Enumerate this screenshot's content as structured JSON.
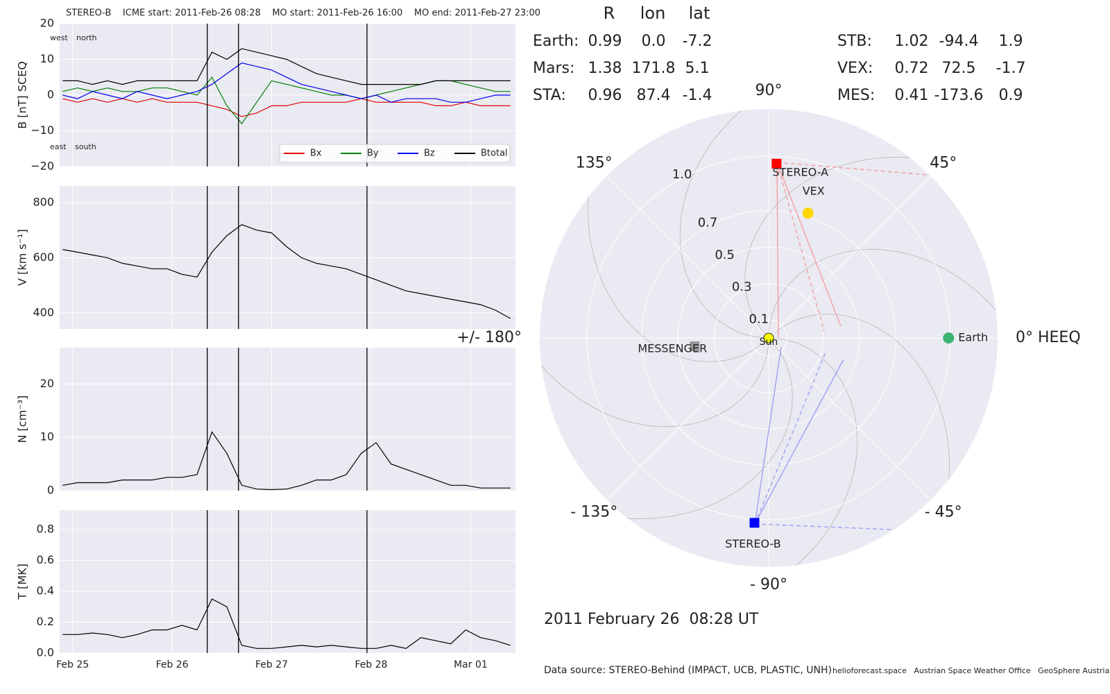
{
  "chart_data": [
    {
      "type": "timeseries",
      "title": "STEREO-B    ICME start: 2011-Feb-26 08:28    MO start: 2011-Feb-26 16:00    MO end: 2011-Feb-27 23:00",
      "x": [
        24.9,
        25.05,
        25.2,
        25.35,
        25.5,
        25.65,
        25.8,
        25.95,
        26.1,
        26.25,
        26.4,
        26.55,
        26.7,
        26.85,
        27.0,
        27.15,
        27.3,
        27.45,
        27.6,
        27.75,
        27.9,
        28.05,
        28.2,
        28.35,
        28.5,
        28.65,
        28.8,
        28.95,
        29.1,
        29.25,
        29.4
      ],
      "xlim": [
        24.87,
        29.45
      ],
      "xticks": [
        {
          "value": 25,
          "label": "Feb 25"
        },
        {
          "value": 26,
          "label": "Feb 26"
        },
        {
          "value": 27,
          "label": "Feb 27"
        },
        {
          "value": 28,
          "label": "Feb 28"
        },
        {
          "value": 29,
          "label": "Mar 01"
        }
      ],
      "markers": [
        26.353,
        26.667,
        27.958
      ],
      "grid": true,
      "panels": [
        {
          "ylabel": "B [nT] SCEQ",
          "ylim": [
            -20,
            20
          ],
          "yticks": [
            {
              "value": -20,
              "label": "−20"
            },
            {
              "value": -10,
              "label": "−10"
            },
            0,
            10,
            20
          ],
          "annotations": [
            "west",
            "north",
            "east",
            "south"
          ],
          "legend": "lower right",
          "series": [
            {
              "name": "Bx",
              "color": "#e00000",
              "values": [
                -1,
                -2,
                -1,
                -2,
                -1,
                -2,
                -1,
                -2,
                -2,
                -2,
                -3,
                -4,
                -6,
                -5,
                -3,
                -3,
                -2,
                -2,
                -2,
                -2,
                -1,
                -2,
                -2,
                -2,
                -2,
                -3,
                -3,
                -2,
                -3,
                -3,
                -3
              ]
            },
            {
              "name": "By",
              "color": "#008000",
              "values": [
                1,
                2,
                1,
                2,
                1,
                1,
                2,
                2,
                1,
                0,
                5,
                -3,
                -8,
                -2,
                4,
                3,
                2,
                1,
                0,
                0,
                -1,
                0,
                1,
                2,
                3,
                4,
                4,
                3,
                2,
                1,
                1
              ]
            },
            {
              "name": "Bz",
              "color": "#0000ee",
              "values": [
                0,
                -1,
                1,
                0,
                -1,
                1,
                0,
                -1,
                0,
                1,
                3,
                6,
                9,
                8,
                7,
                5,
                3,
                2,
                1,
                0,
                -1,
                0,
                -2,
                -1,
                -1,
                -1,
                -2,
                -2,
                -1,
                0,
                0
              ]
            },
            {
              "name": "Btotal",
              "color": "#000000",
              "values": [
                4,
                4,
                3,
                4,
                3,
                4,
                4,
                4,
                4,
                4,
                12,
                10,
                13,
                12,
                11,
                10,
                8,
                6,
                5,
                4,
                3,
                3,
                3,
                3,
                3,
                4,
                4,
                4,
                4,
                4,
                4
              ]
            }
          ]
        },
        {
          "ylabel": "V [km s⁻¹]",
          "ylim": [
            342,
            860
          ],
          "yticks": [
            400,
            600,
            800
          ],
          "series": [
            {
              "color": "#000000",
              "values": [
                630,
                620,
                610,
                600,
                580,
                570,
                560,
                560,
                540,
                530,
                620,
                680,
                720,
                700,
                690,
                640,
                600,
                580,
                570,
                560,
                540,
                520,
                500,
                480,
                470,
                460,
                450,
                440,
                430,
                410,
                380
              ]
            }
          ]
        },
        {
          "ylabel": "N [cm⁻³]",
          "ylim": [
            0,
            26.8
          ],
          "yticks": [
            0,
            10,
            20
          ],
          "series": [
            {
              "color": "#000000",
              "values": [
                1,
                1.5,
                1.5,
                1.5,
                2,
                2,
                2,
                2.5,
                2.5,
                3,
                11,
                7,
                1,
                0.3,
                0.2,
                0.3,
                1,
                2,
                2,
                3,
                7,
                9,
                5,
                4,
                3,
                2,
                1,
                1,
                0.5,
                0.5,
                0.5
              ]
            }
          ]
        },
        {
          "ylabel": "T [MK]",
          "ylim": [
            0,
            0.926
          ],
          "yticks": [
            {
              "value": 0,
              "label": "0.0"
            },
            0.2,
            0.4,
            0.6,
            0.8
          ],
          "series": [
            {
              "color": "#000000",
              "values": [
                0.12,
                0.12,
                0.13,
                0.12,
                0.1,
                0.12,
                0.15,
                0.15,
                0.18,
                0.15,
                0.35,
                0.3,
                0.05,
                0.03,
                0.03,
                0.04,
                0.05,
                0.04,
                0.05,
                0.04,
                0.03,
                0.03,
                0.05,
                0.03,
                0.1,
                0.08,
                0.06,
                0.15,
                0.1,
                0.08,
                0.05
              ]
            }
          ]
        }
      ]
    },
    {
      "type": "polar",
      "rlim": [
        0,
        1.26
      ],
      "rticks": [
        0.1,
        0.3,
        0.5,
        0.7,
        {
          "value": 1,
          "label": "1.0"
        }
      ],
      "thetaticks": [
        {
          "value": 0,
          "label": "0° HEEQ"
        },
        {
          "value": 45,
          "label": "45°"
        },
        {
          "value": 90,
          "label": "90°"
        },
        {
          "value": 135,
          "label": "135°"
        },
        {
          "value": 180,
          "label": "+/- 180°"
        },
        {
          "value": -135,
          "label": "- 135°"
        },
        {
          "value": -90,
          "label": "- 90°"
        },
        {
          "value": -45,
          "label": "- 45°"
        }
      ],
      "sun": "Sun",
      "points": [
        {
          "name": "Earth",
          "r": 0.99,
          "lon": 0.0,
          "color": "#3cb371",
          "label_color": "#3cb371",
          "marker": "circle"
        },
        {
          "name": "STEREO-A",
          "r": 0.96,
          "lon": 87.4,
          "color": "#ff0000",
          "label_color": "#ff0000",
          "marker": "square"
        },
        {
          "name": "VEX",
          "r": 0.72,
          "lon": 72.5,
          "color": "#ffd700",
          "label_color": "#ffa500",
          "marker": "circle"
        },
        {
          "name": "MESSENGER",
          "r": 0.41,
          "lon": -173.6,
          "color": "#999999",
          "label_color": "#aaaaaa",
          "marker": "square"
        },
        {
          "name": "STEREO-B",
          "r": 1.02,
          "lon": -94.4,
          "color": "#0000ff",
          "label_color": "#0000ff",
          "marker": "square"
        }
      ]
    }
  ],
  "table": {
    "columns": [
      "R",
      "lon",
      "lat"
    ],
    "rows": [
      {
        "label": "Earth:",
        "color": "#3cb371",
        "cells": [
          "0.99",
          "0.0",
          "-7.2"
        ]
      },
      {
        "label": "Mars:",
        "color": "#ff6347",
        "cells": [
          "1.38",
          "171.8",
          "5.1"
        ]
      },
      {
        "label": "STA:",
        "color": "#ff0000",
        "cells": [
          "0.96",
          "87.4",
          "-1.4"
        ]
      },
      {
        "label": "STB:",
        "color": "#0000ff",
        "cells": [
          "1.02",
          "-94.4",
          "1.9"
        ]
      },
      {
        "label": "VEX:",
        "color": "#ffa500",
        "cells": [
          "0.72",
          "72.5",
          "-1.7"
        ]
      },
      {
        "label": "MES:",
        "color": "#a9a9a9",
        "cells": [
          "0.41",
          "-173.6",
          "0.9"
        ]
      }
    ]
  },
  "timestamp": "2011 February 26  08:28 UT",
  "footer": {
    "source": "Data source: STEREO-Behind (IMPACT, UCB, PLASTIC, UNH)",
    "credits": "helioforecast.space   Austrian Space Weather Office   GeoSphere Austria"
  }
}
